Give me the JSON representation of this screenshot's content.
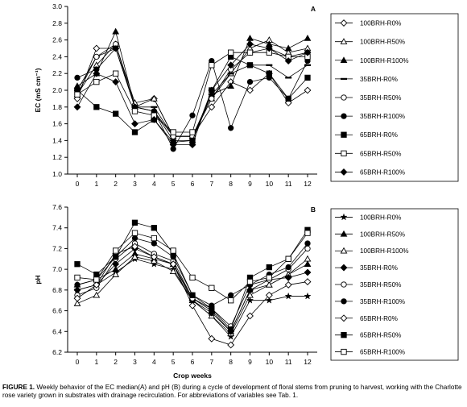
{
  "caption": {
    "label": "FIGURE 1.",
    "text": "Weekly behavior of the EC median(A) and pH (B) during a cycle of development of floral stems from pruning to harvest, working with the Charlotte rose variety grown in substrates with drainage recirculation. For abbreviations of variables see Tab. 1."
  },
  "chart_data": [
    {
      "type": "line",
      "panel_label": "A",
      "ylabel": "EC (mS cm⁻¹)",
      "xlabel": "",
      "ylim": [
        1.0,
        3.0
      ],
      "yticks": [
        "1.0",
        "1.2",
        "1.4",
        "1.6",
        "1.8",
        "2.0",
        "2.2",
        "2.4",
        "2.6",
        "2.8",
        "3.0"
      ],
      "x": [
        0,
        1,
        2,
        3,
        4,
        5,
        6,
        7,
        8,
        9,
        10,
        11,
        12
      ],
      "legend_position": "right",
      "series": [
        {
          "name": "100BRH-R0%",
          "marker": "diamond-open",
          "values": [
            1.9,
            2.5,
            2.5,
            1.8,
            1.9,
            1.45,
            1.45,
            1.8,
            2.1,
            2.0,
            2.2,
            1.85,
            2.0
          ]
        },
        {
          "name": "100BRH-R50%",
          "marker": "triangle-open",
          "values": [
            1.95,
            2.3,
            2.55,
            1.85,
            1.9,
            1.45,
            1.45,
            1.9,
            2.2,
            2.5,
            2.6,
            2.45,
            2.5
          ]
        },
        {
          "name": "100BRH-R100%",
          "marker": "triangle-filled",
          "values": [
            2.05,
            2.2,
            2.7,
            1.8,
            1.75,
            1.4,
            1.4,
            1.95,
            2.05,
            2.62,
            2.55,
            2.5,
            2.62
          ]
        },
        {
          "name": "35BRH-R0%",
          "marker": "dash",
          "values": [
            2.0,
            2.4,
            2.5,
            1.8,
            1.8,
            1.45,
            1.45,
            1.95,
            2.2,
            2.3,
            2.3,
            2.15,
            2.3
          ]
        },
        {
          "name": "35BRH-R50%",
          "marker": "circle-open",
          "values": [
            1.95,
            2.4,
            2.55,
            1.8,
            1.75,
            1.45,
            1.45,
            1.9,
            2.25,
            2.45,
            2.5,
            2.4,
            2.45
          ]
        },
        {
          "name": "35BRH-R100%",
          "marker": "circle-filled",
          "values": [
            2.15,
            2.25,
            2.5,
            1.8,
            1.75,
            1.3,
            1.7,
            2.35,
            1.55,
            2.1,
            2.15,
            1.9,
            2.35
          ]
        },
        {
          "name": "65BRH-R0%",
          "marker": "square-filled",
          "values": [
            2.0,
            1.8,
            1.72,
            1.5,
            1.65,
            1.38,
            1.4,
            2.0,
            2.4,
            2.3,
            2.2,
            1.9,
            2.15
          ]
        },
        {
          "name": "65BRH-R50%",
          "marker": "square-open",
          "values": [
            1.95,
            2.1,
            2.2,
            1.75,
            1.7,
            1.5,
            1.5,
            2.3,
            2.45,
            2.45,
            2.45,
            2.4,
            2.4
          ]
        },
        {
          "name": "65BRH-R100%",
          "marker": "diamond-filled",
          "values": [
            1.8,
            2.2,
            2.1,
            1.6,
            1.65,
            1.35,
            1.35,
            2.0,
            2.3,
            2.55,
            2.5,
            2.35,
            2.45
          ]
        }
      ]
    },
    {
      "type": "line",
      "panel_label": "B",
      "ylabel": "pH",
      "xlabel": "Crop weeks",
      "ylim": [
        6.2,
        7.6
      ],
      "yticks": [
        "6.2",
        "6.4",
        "6.6",
        "6.8",
        "7.0",
        "7.2",
        "7.4",
        "7.6"
      ],
      "x": [
        0,
        1,
        2,
        3,
        4,
        5,
        6,
        7,
        8,
        9,
        10,
        11,
        12
      ],
      "legend_position": "right",
      "series": [
        {
          "name": "100BRH-R0%",
          "marker": "star",
          "values": [
            6.8,
            6.85,
            6.97,
            7.1,
            7.05,
            7.0,
            6.7,
            6.55,
            6.35,
            6.7,
            6.7,
            6.74,
            6.74
          ]
        },
        {
          "name": "100BRH-R50%",
          "marker": "triangle-filled",
          "values": [
            6.85,
            6.9,
            7.0,
            7.15,
            7.1,
            7.05,
            6.72,
            6.6,
            6.4,
            6.8,
            6.85,
            6.95,
            7.05
          ]
        },
        {
          "name": "100BRH-R100%",
          "marker": "triangle-open",
          "values": [
            6.67,
            6.75,
            6.95,
            7.12,
            7.08,
            6.98,
            6.7,
            6.55,
            6.38,
            6.75,
            6.85,
            6.95,
            7.1
          ]
        },
        {
          "name": "35BRH-R0%",
          "marker": "diamond-filled",
          "values": [
            6.8,
            6.85,
            7.05,
            7.2,
            7.12,
            7.05,
            6.7,
            6.58,
            6.4,
            6.8,
            6.9,
            6.92,
            6.97
          ]
        },
        {
          "name": "35BRH-R50%",
          "marker": "circle-open",
          "values": [
            6.75,
            6.82,
            7.1,
            7.25,
            7.15,
            7.08,
            6.72,
            6.62,
            6.45,
            6.85,
            6.9,
            7.0,
            7.2
          ]
        },
        {
          "name": "35BRH-R100%",
          "marker": "circle-filled",
          "values": [
            6.85,
            6.9,
            7.12,
            7.3,
            7.25,
            7.12,
            6.75,
            6.65,
            6.75,
            6.85,
            6.95,
            7.02,
            7.25
          ]
        },
        {
          "name": "65BRH-R0%",
          "marker": "diamond-open",
          "values": [
            6.72,
            6.85,
            7.15,
            7.22,
            7.12,
            7.05,
            6.65,
            6.33,
            6.27,
            6.55,
            6.75,
            6.85,
            6.88
          ]
        },
        {
          "name": "65BRH-R50%",
          "marker": "square-filled",
          "values": [
            7.05,
            6.95,
            7.12,
            7.45,
            7.4,
            7.15,
            6.75,
            6.62,
            6.42,
            6.92,
            7.02,
            7.1,
            7.38
          ]
        },
        {
          "name": "65BRH-R100%",
          "marker": "square-open",
          "values": [
            6.92,
            6.9,
            7.18,
            7.35,
            7.3,
            7.18,
            6.92,
            6.82,
            6.7,
            6.88,
            6.92,
            7.1,
            7.35
          ]
        }
      ]
    }
  ]
}
